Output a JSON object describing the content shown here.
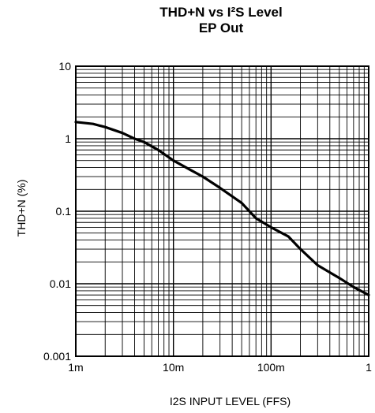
{
  "chart_data": {
    "type": "line",
    "title": "THD+N vs I²S Level",
    "subtitle": "EP Out",
    "xlabel": "I2S INPUT LEVEL (FFS)",
    "ylabel": "THD+N (%)",
    "x_scale": "log",
    "y_scale": "log",
    "xlim": [
      0.001,
      1
    ],
    "ylim": [
      0.001,
      10
    ],
    "x_ticks": [
      {
        "value": 0.001,
        "label": "1m"
      },
      {
        "value": 0.01,
        "label": "10m"
      },
      {
        "value": 0.1,
        "label": "100m"
      },
      {
        "value": 1,
        "label": "1"
      }
    ],
    "y_ticks": [
      {
        "value": 0.001,
        "label": "0.001"
      },
      {
        "value": 0.01,
        "label": "0.01"
      },
      {
        "value": 0.1,
        "label": "0.1"
      },
      {
        "value": 1,
        "label": "1"
      },
      {
        "value": 10,
        "label": "10"
      }
    ],
    "grid": true,
    "series": [
      {
        "color": "#000000",
        "x": [
          0.001,
          0.0015,
          0.002,
          0.003,
          0.004,
          0.005,
          0.007,
          0.01,
          0.015,
          0.02,
          0.03,
          0.05,
          0.07,
          0.1,
          0.15,
          0.2,
          0.3,
          0.5,
          0.7,
          1.0
        ],
        "y": [
          1.7,
          1.6,
          1.45,
          1.2,
          1.0,
          0.9,
          0.7,
          0.5,
          0.37,
          0.3,
          0.21,
          0.13,
          0.08,
          0.06,
          0.045,
          0.03,
          0.018,
          0.012,
          0.009,
          0.007
        ]
      }
    ]
  }
}
